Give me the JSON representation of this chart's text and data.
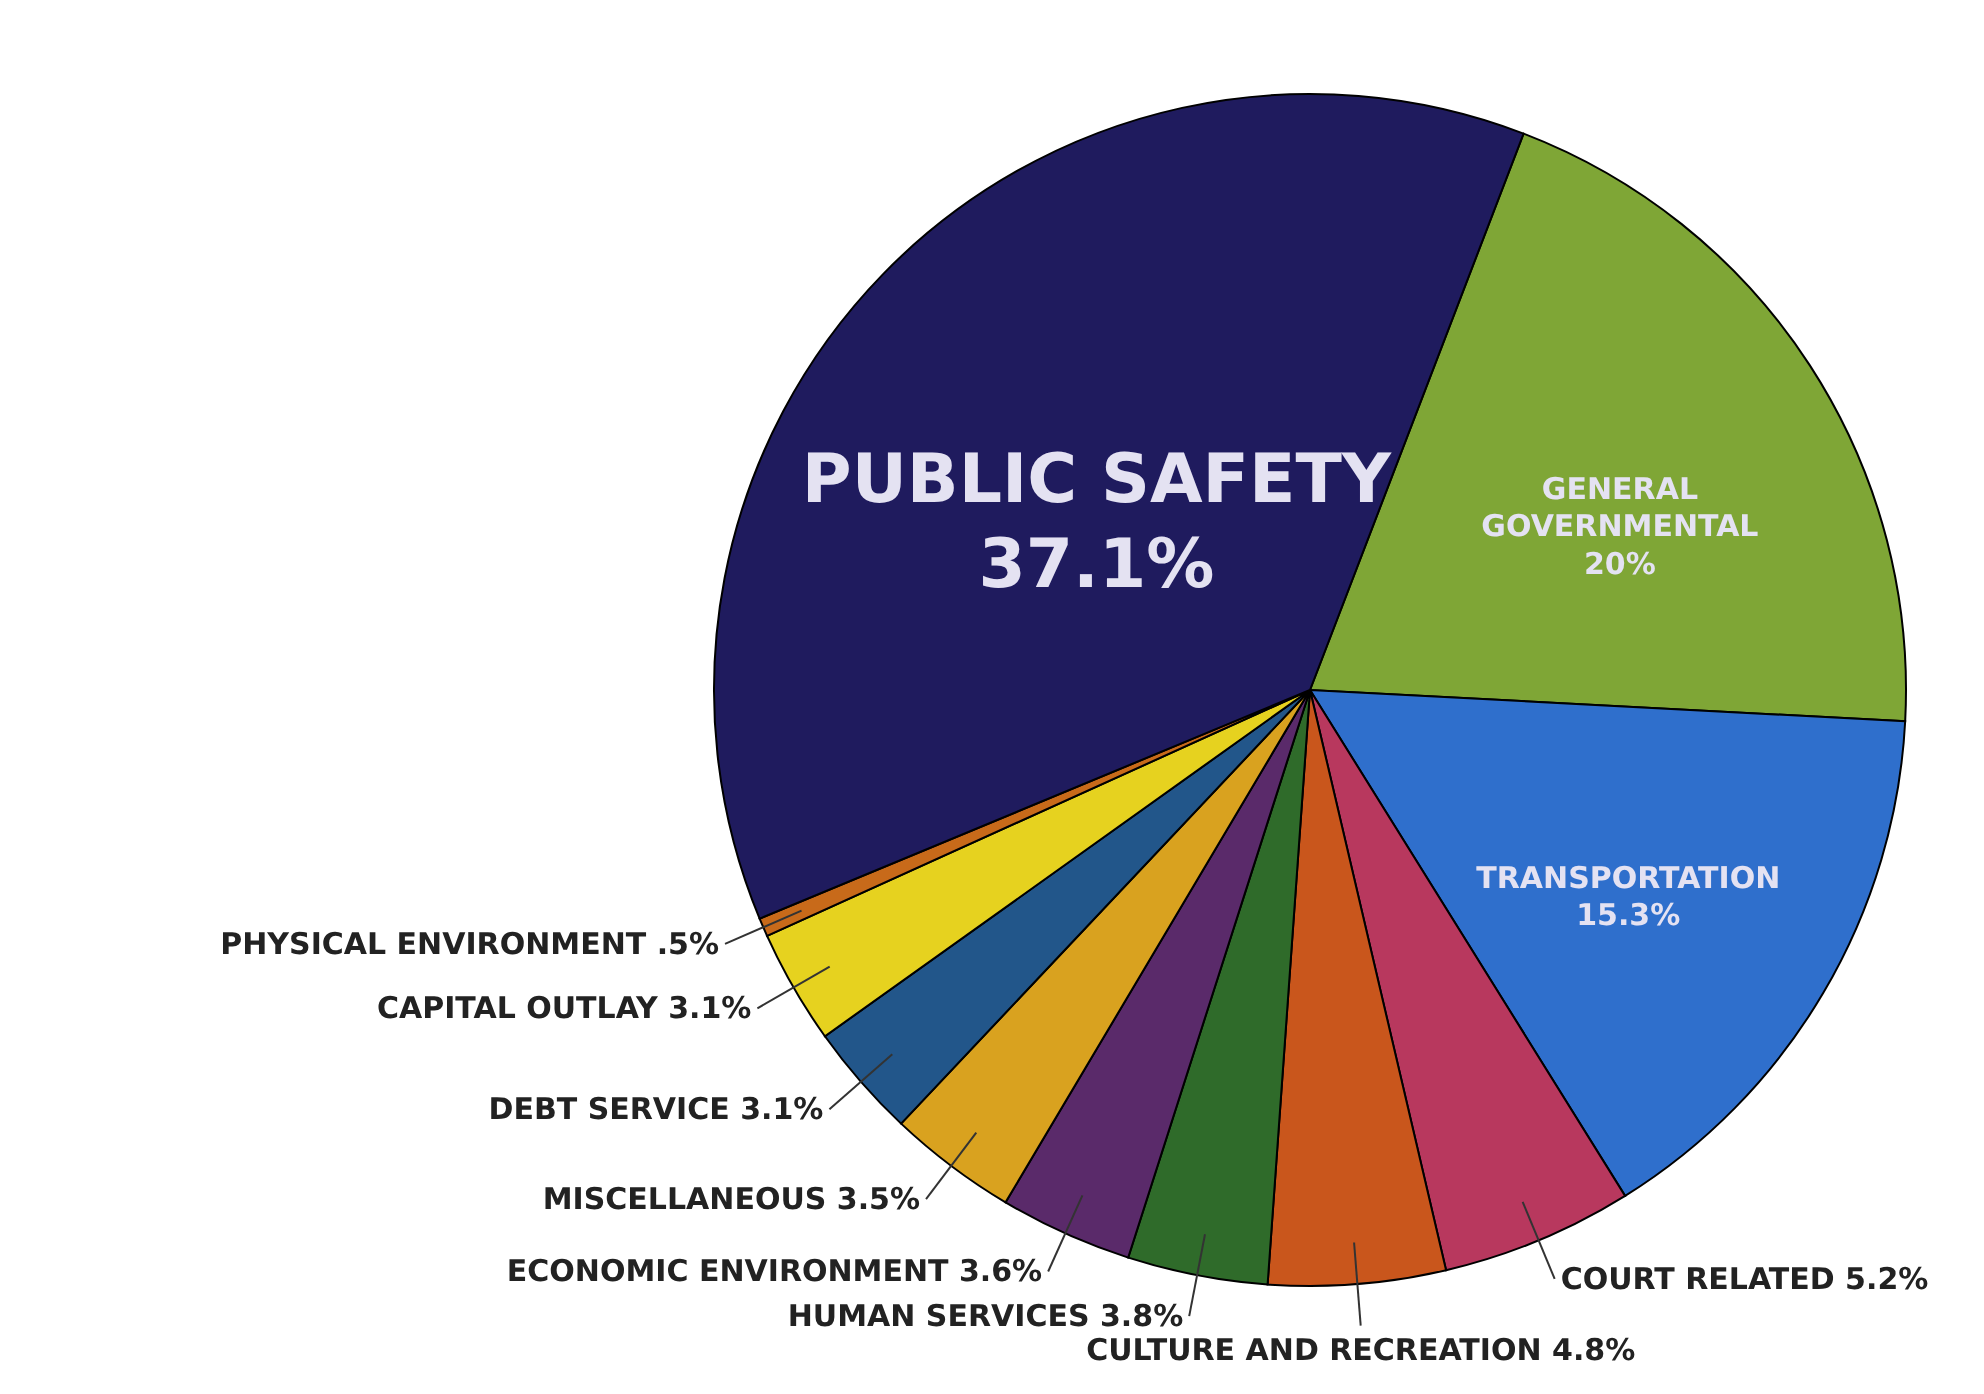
{
  "chart_data": {
    "type": "pie",
    "categories": [
      "GENERAL GOVERNMENTAL",
      "TRANSPORTATION",
      "COURT RELATED",
      "CULTURE AND RECREATION",
      "HUMAN SERVICES",
      "ECONOMIC ENVIRONMENT",
      "MISCELLANEOUS",
      "DEBT SERVICE",
      "CAPITAL OUTLAY",
      "PHYSICAL ENVIRONMENT",
      "PUBLIC SAFETY"
    ],
    "values": [
      20,
      15.3,
      5.2,
      4.8,
      3.8,
      3.6,
      3.5,
      3.1,
      3.1,
      0.5,
      37.1
    ],
    "value_labels": [
      "20%",
      "15.3%",
      "5.2%",
      "4.8%",
      "3.8%",
      "3.6%",
      "3.5%",
      "3.1%",
      "3.1%",
      ".5%",
      "37.1%"
    ],
    "colors": [
      "#7fa636",
      "#2f6fcc",
      "#b8385e",
      "#c9561c",
      "#2f6b2a",
      "#5a2a6a",
      "#d9a21f",
      "#22568a",
      "#e6d21f",
      "#c86a1a",
      "#1f1b5e"
    ]
  }
}
